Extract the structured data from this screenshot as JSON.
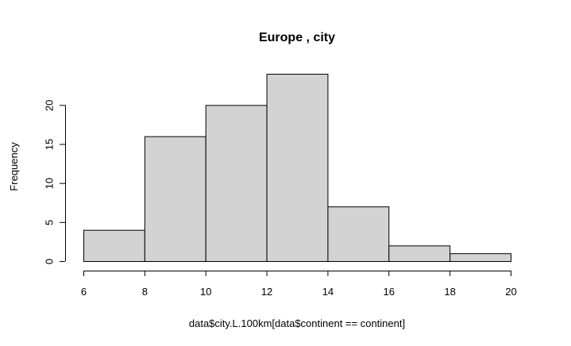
{
  "chart_data": {
    "type": "bar",
    "title": "Europe , city",
    "xlabel": "data$city.L.100km[data$continent == continent]",
    "ylabel": "Frequency",
    "bins": [
      [
        6,
        8
      ],
      [
        8,
        10
      ],
      [
        10,
        12
      ],
      [
        12,
        14
      ],
      [
        14,
        16
      ],
      [
        16,
        18
      ],
      [
        18,
        20
      ]
    ],
    "values": [
      4,
      16,
      20,
      24,
      7,
      2,
      1
    ],
    "xlim": [
      6,
      20
    ],
    "ylim": [
      0,
      24
    ],
    "x_ticks": [
      6,
      8,
      10,
      12,
      14,
      16,
      18,
      20
    ],
    "y_ticks": [
      0,
      5,
      10,
      15,
      20
    ],
    "grid": false,
    "bar_color": "#d3d3d3",
    "edge_color": "#000000"
  }
}
